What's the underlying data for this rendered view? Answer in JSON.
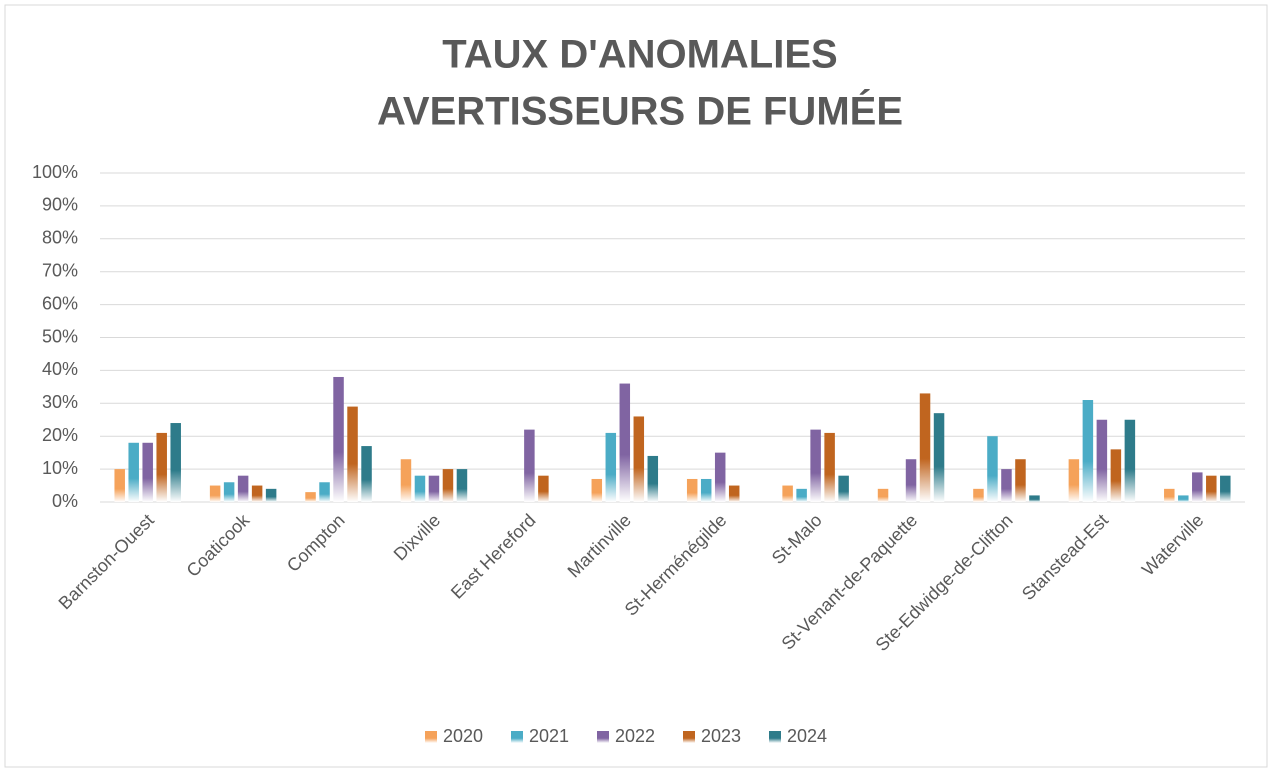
{
  "chart_data": {
    "type": "bar",
    "title": [
      "TAUX D'ANOMALIES",
      "AVERTISSEURS DE FUMÉE"
    ],
    "categories": [
      "Barnston-Ouest",
      "Coaticook",
      "Compton",
      "Dixville",
      "East Hereford",
      "Martinville",
      "St-Herménégilde",
      "St-Malo",
      "St-Venant-de-Paquette",
      "Ste-Edwidge-de-Clifton",
      "Stanstead-Est",
      "Waterville"
    ],
    "series": [
      {
        "name": "2020",
        "color": "#f5a25a",
        "values": [
          10,
          5,
          3,
          13,
          0,
          7,
          7,
          5,
          4,
          4,
          13,
          4
        ]
      },
      {
        "name": "2021",
        "color": "#4bacc6",
        "values": [
          18,
          6,
          6,
          8,
          0,
          21,
          7,
          4,
          0,
          20,
          31,
          2
        ]
      },
      {
        "name": "2022",
        "color": "#8064a2",
        "values": [
          18,
          8,
          38,
          8,
          22,
          36,
          15,
          22,
          13,
          10,
          25,
          9
        ]
      },
      {
        "name": "2023",
        "color": "#c0651f",
        "values": [
          21,
          5,
          29,
          10,
          8,
          26,
          5,
          21,
          33,
          13,
          16,
          8
        ]
      },
      {
        "name": "2024",
        "color": "#2e7b8a",
        "values": [
          24,
          4,
          17,
          10,
          0,
          14,
          0,
          8,
          27,
          2,
          25,
          8
        ]
      }
    ],
    "ylim": [
      0,
      100
    ],
    "yticks": [
      {
        "value": 0,
        "label": "0%"
      },
      {
        "value": 10,
        "label": "10%"
      },
      {
        "value": 20,
        "label": "20%"
      },
      {
        "value": 30,
        "label": "30%"
      },
      {
        "value": 40,
        "label": "40%"
      },
      {
        "value": 50,
        "label": "50%"
      },
      {
        "value": 60,
        "label": "60%"
      },
      {
        "value": 70,
        "label": "70%"
      },
      {
        "value": 80,
        "label": "80%"
      },
      {
        "value": 90,
        "label": "90%"
      },
      {
        "value": 100,
        "label": "100%"
      }
    ],
    "grid": true,
    "legend": "bottom"
  }
}
